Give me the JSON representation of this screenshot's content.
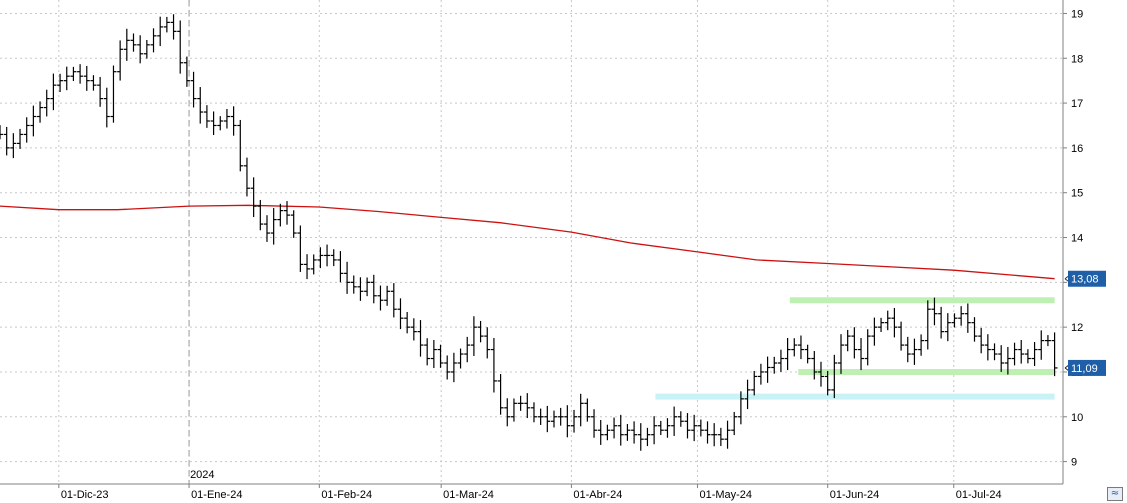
{
  "chart_data": {
    "type": "ohlc",
    "title": "",
    "xlabel": "",
    "ylabel": "",
    "ylim": [
      8.5,
      19.3
    ],
    "y_ticks": [
      9,
      10,
      11,
      12,
      13,
      14,
      15,
      16,
      17,
      18,
      19
    ],
    "grid": true,
    "x_tick_labels": [
      "01-Dic-23",
      "01-Ene-24",
      "01-Feb-24",
      "01-Mar-24",
      "01-Abr-24",
      "01-May-24",
      "01-Jun-24",
      "01-Jul-24"
    ],
    "x_tick_dates": [
      "2023-12-01",
      "2024-01-01",
      "2024-02-01",
      "2024-03-01",
      "2024-04-01",
      "2024-05-01",
      "2024-06-01",
      "2024-07-01"
    ],
    "x_range": [
      "2023-11-17",
      "2024-07-27"
    ],
    "year_marker": {
      "date": "2024-01-01",
      "label": "2024"
    },
    "series": [
      {
        "kind": "ohlc",
        "color": "#000000",
        "closes": [
          16.3,
          16.0,
          16.1,
          16.3,
          16.5,
          16.7,
          16.9,
          17.1,
          17.4,
          17.5,
          17.6,
          17.7,
          17.6,
          17.5,
          17.4,
          17.1,
          16.7,
          17.7,
          18.2,
          18.4,
          18.3,
          18.1,
          18.3,
          18.5,
          18.7,
          18.8,
          18.6,
          17.9,
          17.5,
          17.1,
          16.8,
          16.6,
          16.5,
          16.6,
          16.7,
          16.5,
          15.6,
          15.1,
          14.7,
          14.3,
          14.1,
          14.4,
          14.6,
          14.5,
          14.1,
          13.4,
          13.3,
          13.5,
          13.6,
          13.6,
          13.5,
          13.2,
          13.0,
          12.9,
          12.8,
          13.0,
          12.7,
          12.6,
          12.8,
          12.4,
          12.2,
          12.0,
          11.9,
          11.6,
          11.3,
          11.5,
          11.2,
          11.0,
          11.2,
          11.4,
          11.6,
          12.0,
          11.8,
          11.5,
          10.8,
          10.2,
          10.0,
          10.3,
          10.3,
          10.2,
          10.0,
          10.0,
          9.9,
          10.0,
          10.0,
          9.8,
          10.0,
          10.3,
          10.0,
          9.7,
          9.6,
          9.7,
          9.8,
          9.6,
          9.7,
          9.6,
          9.5,
          9.6,
          9.8,
          9.7,
          9.8,
          10.0,
          9.9,
          9.7,
          9.8,
          9.7,
          9.6,
          9.6,
          9.5,
          9.7,
          10.0,
          10.4,
          10.6,
          10.9,
          11.0,
          11.1,
          11.2,
          11.3,
          11.5,
          11.6,
          11.5,
          11.3,
          11.0,
          10.9,
          10.6,
          11.2,
          11.6,
          11.8,
          11.5,
          11.3,
          11.8,
          12.0,
          12.1,
          12.2,
          12.0,
          11.6,
          11.4,
          11.5,
          11.7,
          12.4,
          12.3,
          11.9,
          12.1,
          12.2,
          12.3,
          12.1,
          11.8,
          11.6,
          11.5,
          11.4,
          11.2,
          11.3,
          11.5,
          11.4,
          11.3,
          11.5,
          11.7,
          11.7,
          11.09
        ]
      },
      {
        "kind": "line",
        "color": "#cc1111",
        "dates": [
          "2023-11-17",
          "2023-12-01",
          "2023-12-15",
          "2024-01-01",
          "2024-01-15",
          "2024-02-01",
          "2024-02-15",
          "2024-03-01",
          "2024-03-15",
          "2024-04-01",
          "2024-04-15",
          "2024-05-01",
          "2024-05-15",
          "2024-06-01",
          "2024-06-15",
          "2024-07-01",
          "2024-07-25"
        ],
        "values": [
          14.7,
          14.62,
          14.62,
          14.7,
          14.72,
          14.68,
          14.58,
          14.45,
          14.33,
          14.12,
          13.88,
          13.68,
          13.5,
          13.42,
          13.35,
          13.27,
          13.08
        ]
      }
    ],
    "horizontal_bands": [
      {
        "color": "#bff0b3",
        "from": "2024-05-23",
        "to": "2024-07-25",
        "value": 12.6
      },
      {
        "color": "#bff0b3",
        "from": "2024-05-25",
        "to": "2024-07-25",
        "value": 11.0
      },
      {
        "color": "#c9f2f6",
        "from": "2024-04-21",
        "to": "2024-07-25",
        "value": 10.45
      }
    ],
    "price_badges": [
      {
        "label": "13,08",
        "value": 13.08,
        "color": "#1f5fa8"
      },
      {
        "label": "11,09",
        "value": 11.09,
        "color": "#1f5fa8"
      }
    ]
  }
}
